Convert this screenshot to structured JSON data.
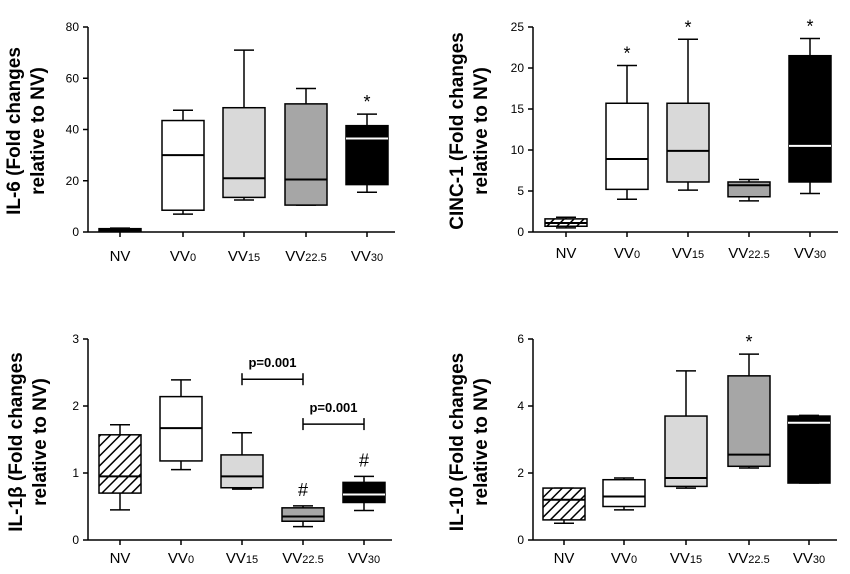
{
  "colors": {
    "white": "#ffffff",
    "light_gray": "#d9d9d9",
    "mid_gray": "#a6a6a6",
    "black": "#000000",
    "axis": "#000000"
  },
  "chart_data": [
    {
      "type": "box",
      "title": "",
      "ylabel_line1": "IL-6 (Fold changes",
      "ylabel_line2": "relative to NV)",
      "ylim": [
        0,
        80
      ],
      "yticks": [
        "0",
        "20",
        "40",
        "60",
        "80"
      ],
      "categories": [
        {
          "base": "NV",
          "sub": "",
          "fill": "white",
          "pattern": "none",
          "min": 0.4,
          "q1": 0.5,
          "median": 0.9,
          "q3": 1.3,
          "max": 1.5,
          "annotation": ""
        },
        {
          "base": "VV",
          "sub": "0",
          "fill": "white",
          "pattern": "none",
          "min": 7,
          "q1": 8.5,
          "median": 30,
          "q3": 43.5,
          "max": 47.5,
          "annotation": ""
        },
        {
          "base": "VV",
          "sub": "15",
          "fill": "light_gray",
          "pattern": "none",
          "min": 12.5,
          "q1": 13.5,
          "median": 21,
          "q3": 48.5,
          "max": 71,
          "annotation": ""
        },
        {
          "base": "VV",
          "sub": "22.5",
          "fill": "mid_gray",
          "pattern": "none",
          "min": 10.5,
          "q1": 10.5,
          "median": 20.5,
          "q3": 50,
          "max": 56,
          "annotation": ""
        },
        {
          "base": "VV",
          "sub": "30",
          "fill": "black",
          "pattern": "none",
          "min": 15.5,
          "q1": 18.5,
          "median": 36.5,
          "q3": 41.5,
          "max": 46,
          "annotation": "*"
        }
      ],
      "brackets": []
    },
    {
      "type": "box",
      "title": "",
      "ylabel_line1": "CINC-1 (Fold changes",
      "ylabel_line2": "relative to NV)",
      "ylim": [
        0,
        25
      ],
      "yticks": [
        "0",
        "5",
        "10",
        "15",
        "20",
        "25"
      ],
      "categories": [
        {
          "base": "NV",
          "sub": "",
          "fill": "white",
          "pattern": "hatch",
          "min": 0.5,
          "q1": 0.7,
          "median": 1.1,
          "q3": 1.6,
          "max": 1.8,
          "annotation": ""
        },
        {
          "base": "VV",
          "sub": "0",
          "fill": "white",
          "pattern": "none",
          "min": 4,
          "q1": 5.2,
          "median": 8.9,
          "q3": 15.7,
          "max": 20.3,
          "annotation": "*"
        },
        {
          "base": "VV",
          "sub": "15",
          "fill": "light_gray",
          "pattern": "none",
          "min": 5.1,
          "q1": 6.1,
          "median": 9.9,
          "q3": 15.7,
          "max": 23.5,
          "annotation": "*"
        },
        {
          "base": "VV",
          "sub": "22.5",
          "fill": "mid_gray",
          "pattern": "none",
          "min": 3.8,
          "q1": 4.3,
          "median": 5.7,
          "q3": 6.1,
          "max": 6.4,
          "annotation": ""
        },
        {
          "base": "VV",
          "sub": "30",
          "fill": "black",
          "pattern": "none",
          "min": 4.7,
          "q1": 6.1,
          "median": 10.5,
          "q3": 21.5,
          "max": 23.6,
          "annotation": "*"
        }
      ],
      "brackets": []
    },
    {
      "type": "box",
      "title": "",
      "ylabel_line1": "IL-1β (Fold changes",
      "ylabel_line2": "relative to NV)",
      "ylim": [
        0,
        3
      ],
      "yticks": [
        "0",
        "1",
        "2",
        "3"
      ],
      "categories": [
        {
          "base": "NV",
          "sub": "",
          "fill": "white",
          "pattern": "hatch",
          "min": 0.45,
          "q1": 0.7,
          "median": 0.95,
          "q3": 1.57,
          "max": 1.72,
          "annotation": ""
        },
        {
          "base": "VV",
          "sub": "0",
          "fill": "white",
          "pattern": "none",
          "min": 1.05,
          "q1": 1.18,
          "median": 1.67,
          "q3": 2.14,
          "max": 2.39,
          "annotation": ""
        },
        {
          "base": "VV",
          "sub": "15",
          "fill": "light_gray",
          "pattern": "none",
          "min": 0.76,
          "q1": 0.78,
          "median": 0.95,
          "q3": 1.27,
          "max": 1.6,
          "annotation": ""
        },
        {
          "base": "VV",
          "sub": "22.5",
          "fill": "mid_gray",
          "pattern": "none",
          "min": 0.2,
          "q1": 0.28,
          "median": 0.35,
          "q3": 0.48,
          "max": 0.51,
          "annotation": "#"
        },
        {
          "base": "VV",
          "sub": "30",
          "fill": "black",
          "pattern": "none",
          "min": 0.44,
          "q1": 0.56,
          "median": 0.68,
          "q3": 0.86,
          "max": 0.95,
          "annotation": "#"
        }
      ],
      "brackets": [
        {
          "from": 2,
          "to": 3,
          "y": 2.4,
          "label": "p=0.001"
        },
        {
          "from": 3,
          "to": 4,
          "y": 1.73,
          "label": "p=0.001"
        }
      ]
    },
    {
      "type": "box",
      "title": "",
      "ylabel_line1": "IL-10 (Fold changes",
      "ylabel_line2": "relative to NV)",
      "ylim": [
        0,
        6
      ],
      "yticks": [
        "0",
        "2",
        "4",
        "6"
      ],
      "categories": [
        {
          "base": "NV",
          "sub": "",
          "fill": "white",
          "pattern": "hatch",
          "min": 0.5,
          "q1": 0.6,
          "median": 1.2,
          "q3": 1.55,
          "max": 1.55,
          "annotation": ""
        },
        {
          "base": "VV",
          "sub": "0",
          "fill": "white",
          "pattern": "none",
          "min": 0.9,
          "q1": 1.0,
          "median": 1.3,
          "q3": 1.8,
          "max": 1.85,
          "annotation": ""
        },
        {
          "base": "VV",
          "sub": "15",
          "fill": "light_gray",
          "pattern": "none",
          "min": 1.55,
          "q1": 1.6,
          "median": 1.85,
          "q3": 3.7,
          "max": 5.05,
          "annotation": ""
        },
        {
          "base": "VV",
          "sub": "22.5",
          "fill": "mid_gray",
          "pattern": "none",
          "min": 2.15,
          "q1": 2.2,
          "median": 2.55,
          "q3": 4.9,
          "max": 5.55,
          "annotation": "*"
        },
        {
          "base": "VV",
          "sub": "30",
          "fill": "black",
          "pattern": "none",
          "min": 1.7,
          "q1": 1.7,
          "median": 3.5,
          "q3": 3.7,
          "max": 3.72,
          "annotation": ""
        }
      ],
      "brackets": []
    }
  ]
}
